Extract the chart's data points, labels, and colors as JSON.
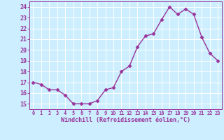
{
  "x": [
    0,
    1,
    2,
    3,
    4,
    5,
    6,
    7,
    8,
    9,
    10,
    11,
    12,
    13,
    14,
    15,
    16,
    17,
    18,
    19,
    20,
    21,
    22,
    23
  ],
  "y": [
    17.0,
    16.8,
    16.3,
    16.3,
    15.8,
    15.0,
    15.0,
    15.0,
    15.3,
    16.3,
    16.5,
    18.0,
    18.5,
    20.3,
    21.3,
    21.5,
    22.8,
    24.0,
    23.3,
    23.8,
    23.3,
    21.2,
    19.7,
    19.0
  ],
  "line_color": "#993399",
  "marker": "D",
  "marker_size": 2.5,
  "linewidth": 1.0,
  "bg_color": "#cceeff",
  "grid_color": "#ffffff",
  "xlabel": "Windchill (Refroidissement éolien,°C)",
  "xlabel_color": "#993399",
  "tick_color": "#993399",
  "label_color": "#993399",
  "xlim": [
    -0.5,
    23.5
  ],
  "ylim": [
    14.5,
    24.5
  ],
  "yticks": [
    15,
    16,
    17,
    18,
    19,
    20,
    21,
    22,
    23,
    24
  ],
  "xticks": [
    0,
    1,
    2,
    3,
    4,
    5,
    6,
    7,
    8,
    9,
    10,
    11,
    12,
    13,
    14,
    15,
    16,
    17,
    18,
    19,
    20,
    21,
    22,
    23
  ],
  "xtick_labels": [
    "0",
    "1",
    "2",
    "3",
    "4",
    "5",
    "6",
    "7",
    "8",
    "9",
    "10",
    "11",
    "12",
    "13",
    "14",
    "15",
    "16",
    "17",
    "18",
    "19",
    "20",
    "21",
    "22",
    "23"
  ]
}
